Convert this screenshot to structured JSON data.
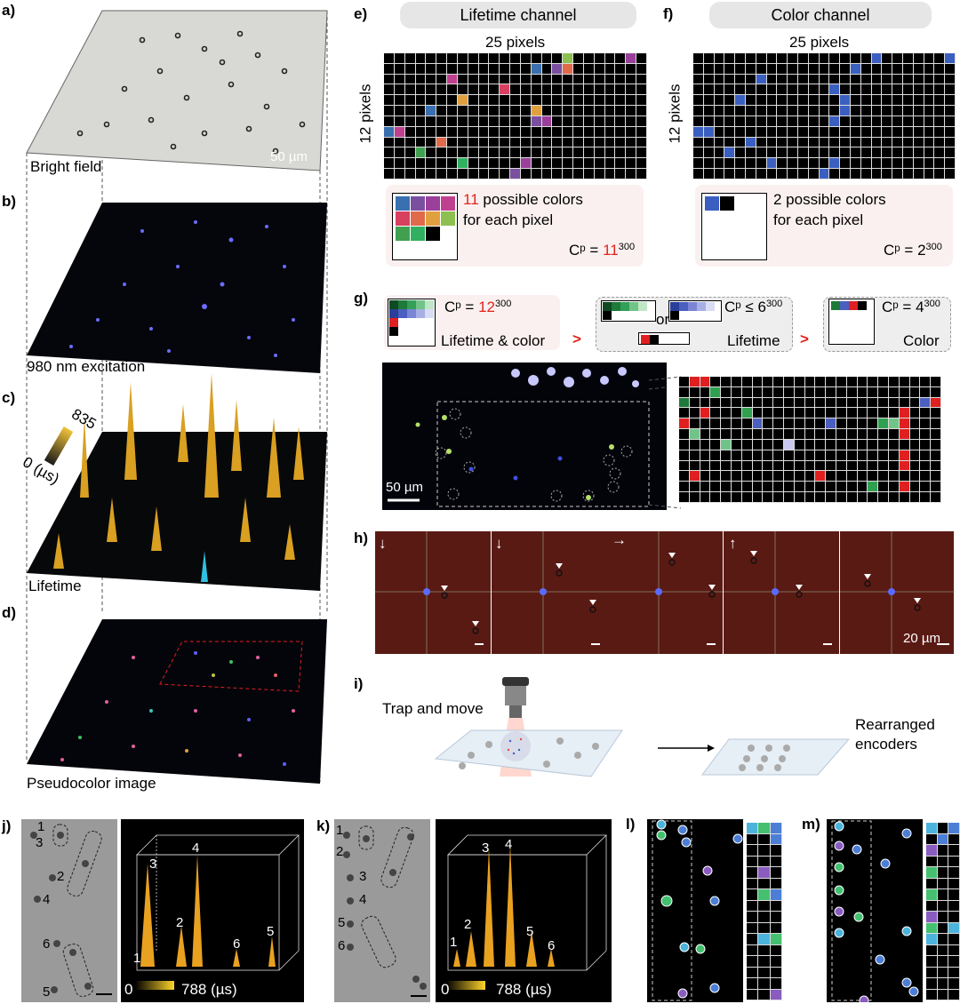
{
  "panel_labels": {
    "a": "a)",
    "b": "b)",
    "c": "c)",
    "d": "d)",
    "e": "e)",
    "f": "f)",
    "g": "g)",
    "h": "h)",
    "i": "i)",
    "j": "j)",
    "k": "k)",
    "l": "l)",
    "m": "m)"
  },
  "a": {
    "caption": "Bright field",
    "scale": "50 µm"
  },
  "b": {
    "caption": "980 nm excitation"
  },
  "c": {
    "caption": "Lifetime",
    "cbar_max": "835",
    "cbar_min": "0 (µs)"
  },
  "d": {
    "caption": "Pseudocolor image"
  },
  "e": {
    "header": "Lifetime channel",
    "top": "25 pixels",
    "side": "12 pixels",
    "count": "11",
    "line1": " possible colors",
    "line2": "for each pixel",
    "cp": "Cᵖ = ",
    "cp_base": "11",
    "cp_exp": "300",
    "palette": [
      "#3a6fb0",
      "#7a4fa0",
      "#9a3f9a",
      "#c04090",
      "#d84060",
      "#e06a4a",
      "#e0a040",
      "#8dc050",
      "#40a050",
      "#30b060",
      "#000000"
    ]
  },
  "f": {
    "header": "Color channel",
    "top": "25 pixels",
    "side": "12 pixels",
    "line1": "2 possible colors",
    "line2": "for each pixel",
    "cp": "Cᵖ = 2",
    "cp_exp": "300",
    "palette": [
      "#3a5fc0",
      "#000000"
    ]
  },
  "g": {
    "cp1": "Cᵖ = ",
    "cp1_base": "12",
    "cp1_exp": "300",
    "label1": "Lifetime & color",
    "gt1": ">",
    "or": "or",
    "cp2": "Cᵖ ≤ 6",
    "cp2_exp": "300",
    "label2": "Lifetime",
    "gt2": ">",
    "cp3": "Cᵖ = 4",
    "cp3_exp": "300",
    "label3": "Color",
    "scale": "50 µm"
  },
  "h": {
    "scale": "20 µm",
    "arrows": [
      "↓",
      "↓",
      "→",
      "↑",
      ""
    ]
  },
  "i": {
    "trap": "Trap and move",
    "result_line1": "Rearranged",
    "result_line2": "encoders"
  },
  "j": {
    "cbar_min": "0",
    "cbar_max": "788 (µs)",
    "nums": [
      "1",
      "3",
      "2",
      "4",
      "6",
      "5"
    ],
    "peaks": [
      "1",
      "3",
      "2",
      "4",
      "6",
      "5"
    ]
  },
  "k": {
    "cbar_min": "0",
    "cbar_max": "788 (µs)",
    "nums": [
      "1",
      "2",
      "3",
      "4",
      "5",
      "6"
    ],
    "peaks": [
      "1",
      "2",
      "3",
      "4",
      "5",
      "6"
    ]
  }
}
